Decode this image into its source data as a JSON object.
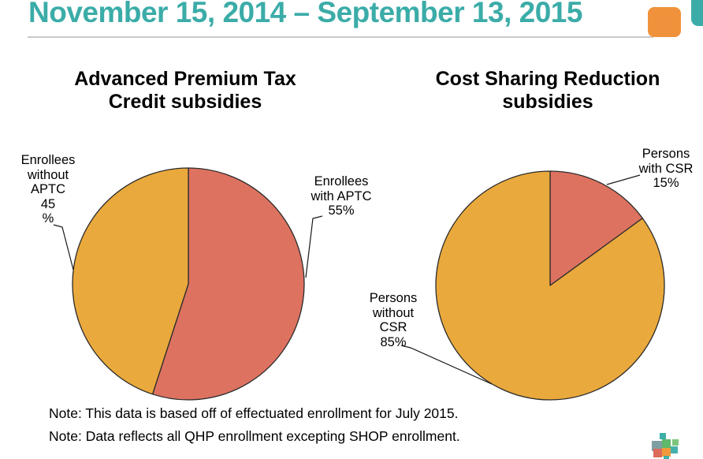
{
  "page": {
    "title": "November 15, 2014 – September 13, 2015",
    "notes": [
      "Note: This data is based off of effectuated enrollment for July 2015.",
      "Note: Data reflects all QHP enrollment excepting SHOP enrollment."
    ]
  },
  "colors": {
    "accent_teal": "#3BACA8",
    "accent_orange": "#F0923B",
    "pie_gold": "#E9A93C",
    "pie_coral": "#DD7260",
    "slice_outline": "#2B2B2B",
    "leader_line": "#1A1A1A",
    "rule_gray": "#C9C9C9"
  },
  "chart_data": [
    {
      "type": "pie",
      "title": "Advanced Premium Tax\nCredit subsidies",
      "start_angle_deg": 0,
      "direction": "clockwise",
      "slices": [
        {
          "label": "Enrollees with APTC",
          "value": 55,
          "color": "#DD7260"
        },
        {
          "label": "Enrollees without APTC",
          "value": 45,
          "color": "#E9A93C"
        }
      ],
      "callouts": [
        {
          "text": "Enrollees\nwith APTC\n55%"
        },
        {
          "text": "Enrollees\nwithout\nAPTC\n45\n%"
        }
      ]
    },
    {
      "type": "pie",
      "title": "Cost Sharing Reduction\nsubsidies",
      "start_angle_deg": 0,
      "direction": "clockwise",
      "slices": [
        {
          "label": "Persons with CSR",
          "value": 15,
          "color": "#DD7260"
        },
        {
          "label": "Persons without CSR",
          "value": 85,
          "color": "#E9A93C"
        }
      ],
      "callouts": [
        {
          "text": "Persons\nwith CSR\n15%"
        },
        {
          "text": "Persons\nwithout\nCSR\n85%"
        }
      ]
    }
  ]
}
